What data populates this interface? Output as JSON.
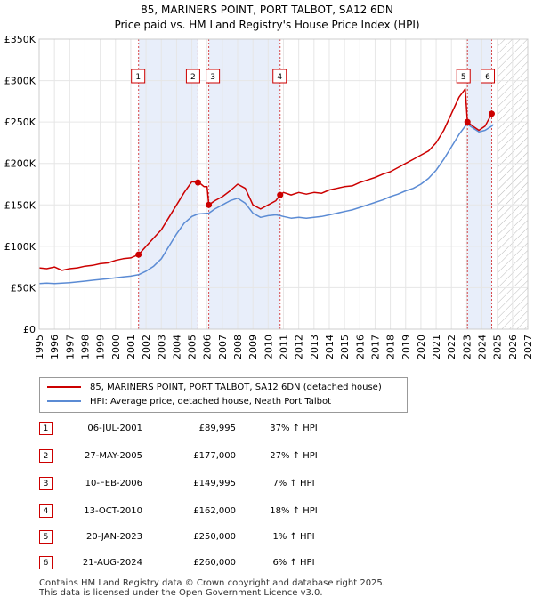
{
  "chart_data": {
    "type": "line",
    "title": "85, MARINERS POINT, PORT TALBOT, SA12 6DN",
    "subtitle": "Price paid vs. HM Land Registry's House Price Index (HPI)",
    "xlim": [
      1995,
      2027
    ],
    "ylim": [
      0,
      350000
    ],
    "x_ticks": [
      1995,
      1996,
      1997,
      1998,
      1999,
      2000,
      2001,
      2002,
      2003,
      2004,
      2005,
      2006,
      2007,
      2008,
      2009,
      2010,
      2011,
      2012,
      2013,
      2014,
      2015,
      2016,
      2017,
      2018,
      2019,
      2020,
      2021,
      2022,
      2023,
      2024,
      2025,
      2026,
      2027
    ],
    "y_ticks": [
      {
        "value": 0,
        "label": "£0"
      },
      {
        "value": 50000,
        "label": "£50K"
      },
      {
        "value": 100000,
        "label": "£100K"
      },
      {
        "value": 150000,
        "label": "£150K"
      },
      {
        "value": 200000,
        "label": "£200K"
      },
      {
        "value": 250000,
        "label": "£250K"
      },
      {
        "value": 300000,
        "label": "£300K"
      },
      {
        "value": 350000,
        "label": "£350K"
      }
    ],
    "forecast_from": 2025.0,
    "shaded_periods": [
      [
        2001.51,
        2005.4
      ],
      [
        2006.11,
        2010.78
      ],
      [
        2023.05,
        2024.64
      ]
    ],
    "series": [
      {
        "name": "85, MARINERS POINT, PORT TALBOT, SA12 6DN (detached house)",
        "color": "#cc0000",
        "points": [
          [
            1995.0,
            74000
          ],
          [
            1995.5,
            73000
          ],
          [
            1996.0,
            75000
          ],
          [
            1996.5,
            71000
          ],
          [
            1997.0,
            73000
          ],
          [
            1997.5,
            74000
          ],
          [
            1998.0,
            76000
          ],
          [
            1998.5,
            77000
          ],
          [
            1999.0,
            79000
          ],
          [
            1999.5,
            80000
          ],
          [
            2000.0,
            83000
          ],
          [
            2000.5,
            85000
          ],
          [
            2001.0,
            86000
          ],
          [
            2001.51,
            89995
          ],
          [
            2002.0,
            100000
          ],
          [
            2002.5,
            110000
          ],
          [
            2003.0,
            120000
          ],
          [
            2003.5,
            135000
          ],
          [
            2004.0,
            150000
          ],
          [
            2004.5,
            165000
          ],
          [
            2005.0,
            178000
          ],
          [
            2005.4,
            177000
          ],
          [
            2005.6,
            175000
          ],
          [
            2005.8,
            172000
          ],
          [
            2006.0,
            172000
          ],
          [
            2006.11,
            149995
          ],
          [
            2006.5,
            155000
          ],
          [
            2007.0,
            160000
          ],
          [
            2007.5,
            167000
          ],
          [
            2008.0,
            175000
          ],
          [
            2008.5,
            170000
          ],
          [
            2009.0,
            150000
          ],
          [
            2009.5,
            145000
          ],
          [
            2010.0,
            150000
          ],
          [
            2010.5,
            155000
          ],
          [
            2010.78,
            162000
          ],
          [
            2011.0,
            165000
          ],
          [
            2011.5,
            162000
          ],
          [
            2012.0,
            165000
          ],
          [
            2012.5,
            163000
          ],
          [
            2013.0,
            165000
          ],
          [
            2013.5,
            164000
          ],
          [
            2014.0,
            168000
          ],
          [
            2014.5,
            170000
          ],
          [
            2015.0,
            172000
          ],
          [
            2015.5,
            173000
          ],
          [
            2016.0,
            177000
          ],
          [
            2016.5,
            180000
          ],
          [
            2017.0,
            183000
          ],
          [
            2017.5,
            187000
          ],
          [
            2018.0,
            190000
          ],
          [
            2018.5,
            195000
          ],
          [
            2019.0,
            200000
          ],
          [
            2019.5,
            205000
          ],
          [
            2020.0,
            210000
          ],
          [
            2020.5,
            215000
          ],
          [
            2021.0,
            225000
          ],
          [
            2021.5,
            240000
          ],
          [
            2022.0,
            260000
          ],
          [
            2022.5,
            280000
          ],
          [
            2022.9,
            290000
          ],
          [
            2023.05,
            250000
          ],
          [
            2023.4,
            245000
          ],
          [
            2023.8,
            240000
          ],
          [
            2024.2,
            245000
          ],
          [
            2024.64,
            260000
          ],
          [
            2024.75,
            262000
          ]
        ]
      },
      {
        "name": "HPI: Average price, detached house, Neath Port Talbot",
        "color": "#5b8bd4",
        "points": [
          [
            1995.0,
            55000
          ],
          [
            1995.5,
            55500
          ],
          [
            1996.0,
            55000
          ],
          [
            1996.5,
            55500
          ],
          [
            1997.0,
            56000
          ],
          [
            1997.5,
            57000
          ],
          [
            1998.0,
            58000
          ],
          [
            1998.5,
            59000
          ],
          [
            1999.0,
            60000
          ],
          [
            1999.5,
            61000
          ],
          [
            2000.0,
            62000
          ],
          [
            2000.5,
            63000
          ],
          [
            2001.0,
            64000
          ],
          [
            2001.51,
            65700
          ],
          [
            2002.0,
            70000
          ],
          [
            2002.5,
            76000
          ],
          [
            2003.0,
            85000
          ],
          [
            2003.5,
            100000
          ],
          [
            2004.0,
            115000
          ],
          [
            2004.5,
            128000
          ],
          [
            2005.0,
            136000
          ],
          [
            2005.4,
            139000
          ],
          [
            2006.11,
            140000
          ],
          [
            2006.5,
            145000
          ],
          [
            2007.0,
            150000
          ],
          [
            2007.5,
            155000
          ],
          [
            2008.0,
            158000
          ],
          [
            2008.5,
            152000
          ],
          [
            2009.0,
            140000
          ],
          [
            2009.5,
            135000
          ],
          [
            2010.0,
            137000
          ],
          [
            2010.5,
            138000
          ],
          [
            2010.78,
            137000
          ],
          [
            2011.0,
            136000
          ],
          [
            2011.5,
            134000
          ],
          [
            2012.0,
            135000
          ],
          [
            2012.5,
            134000
          ],
          [
            2013.0,
            135000
          ],
          [
            2013.5,
            136000
          ],
          [
            2014.0,
            138000
          ],
          [
            2014.5,
            140000
          ],
          [
            2015.0,
            142000
          ],
          [
            2015.5,
            144000
          ],
          [
            2016.0,
            147000
          ],
          [
            2016.5,
            150000
          ],
          [
            2017.0,
            153000
          ],
          [
            2017.5,
            156000
          ],
          [
            2018.0,
            160000
          ],
          [
            2018.5,
            163000
          ],
          [
            2019.0,
            167000
          ],
          [
            2019.5,
            170000
          ],
          [
            2020.0,
            175000
          ],
          [
            2020.5,
            182000
          ],
          [
            2021.0,
            192000
          ],
          [
            2021.5,
            205000
          ],
          [
            2022.0,
            220000
          ],
          [
            2022.5,
            235000
          ],
          [
            2022.9,
            245000
          ],
          [
            2023.05,
            247500
          ],
          [
            2023.4,
            243000
          ],
          [
            2023.8,
            238000
          ],
          [
            2024.2,
            240000
          ],
          [
            2024.64,
            245000
          ],
          [
            2024.75,
            247000
          ]
        ]
      }
    ],
    "sales": [
      {
        "id": "1",
        "x": 2001.51,
        "price": 89995
      },
      {
        "id": "2",
        "x": 2005.4,
        "price": 177000
      },
      {
        "id": "3",
        "x": 2006.11,
        "price": 149995
      },
      {
        "id": "4",
        "x": 2010.78,
        "price": 162000
      },
      {
        "id": "5",
        "x": 2023.05,
        "price": 250000
      },
      {
        "id": "6",
        "x": 2024.64,
        "price": 260000
      }
    ]
  },
  "legend": {
    "property_label": "85, MARINERS POINT, PORT TALBOT, SA12 6DN (detached house)",
    "hpi_label": "HPI: Average price, detached house, Neath Port Talbot"
  },
  "transactions": [
    {
      "num": "1",
      "date": "06-JUL-2001",
      "price": "£89,995",
      "hpi": "37% ↑ HPI"
    },
    {
      "num": "2",
      "date": "27-MAY-2005",
      "price": "£177,000",
      "hpi": "27% ↑ HPI"
    },
    {
      "num": "3",
      "date": "10-FEB-2006",
      "price": "£149,995",
      "hpi": "7% ↑ HPI"
    },
    {
      "num": "4",
      "date": "13-OCT-2010",
      "price": "£162,000",
      "hpi": "18% ↑ HPI"
    },
    {
      "num": "5",
      "date": "20-JAN-2023",
      "price": "£250,000",
      "hpi": "1% ↑ HPI"
    },
    {
      "num": "6",
      "date": "21-AUG-2024",
      "price": "£260,000",
      "hpi": "6% ↑ HPI"
    }
  ],
  "footer": {
    "line1": "Contains HM Land Registry data © Crown copyright and database right 2025.",
    "line2": "This data is licensed under the Open Government Licence v3.0."
  },
  "colors": {
    "property": "#cc0000",
    "hpi": "#5b8bd4",
    "shade": "#e8eefa",
    "marker": "#cc0000"
  }
}
